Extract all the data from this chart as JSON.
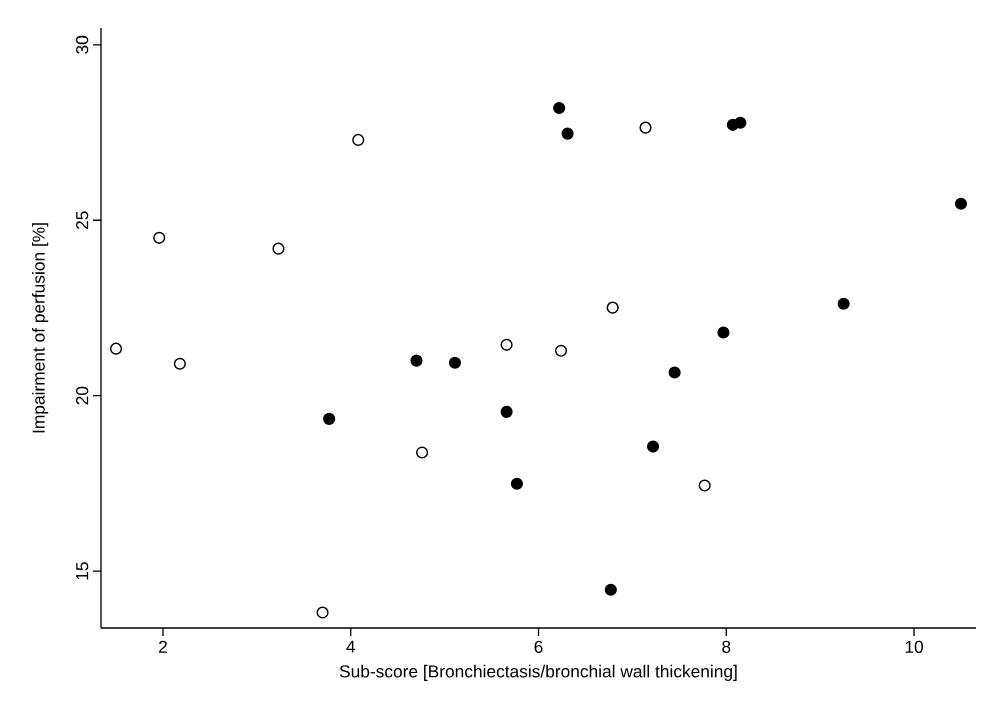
{
  "chart_data": {
    "type": "scatter",
    "xlabel": "Sub-score [Bronchiectasis/bronchial wall thickening]",
    "ylabel": "Impairment of perfusion [%]",
    "xlim": [
      1.34,
      10.66
    ],
    "ylim": [
      13.38,
      30.48
    ],
    "xticks": [
      2,
      4,
      6,
      8,
      10
    ],
    "yticks": [
      15,
      20,
      25,
      30
    ],
    "marker": "circle",
    "series": [
      {
        "color": "#ffffff",
        "x": [
          1.5,
          1.96,
          2.18,
          3.23,
          4.08,
          3.7,
          4.76,
          7.14,
          6.79,
          5.66,
          6.24,
          7.77
        ],
        "values": [
          21.34,
          24.5,
          20.91,
          24.19,
          27.29,
          13.82,
          18.38,
          27.64,
          22.51,
          21.45,
          21.28,
          17.44
        ]
      },
      {
        "color": "#000000",
        "x": [
          6.22,
          6.31,
          8.07,
          8.15,
          10.5,
          9.25,
          7.97,
          7.45,
          7.22,
          5.66,
          5.77,
          6.77,
          4.7,
          5.11,
          3.77
        ],
        "values": [
          28.2,
          27.47,
          27.72,
          27.78,
          25.47,
          22.62,
          21.8,
          20.66,
          18.55,
          19.54,
          17.49,
          14.47,
          21.0,
          20.94,
          19.34
        ]
      }
    ]
  }
}
